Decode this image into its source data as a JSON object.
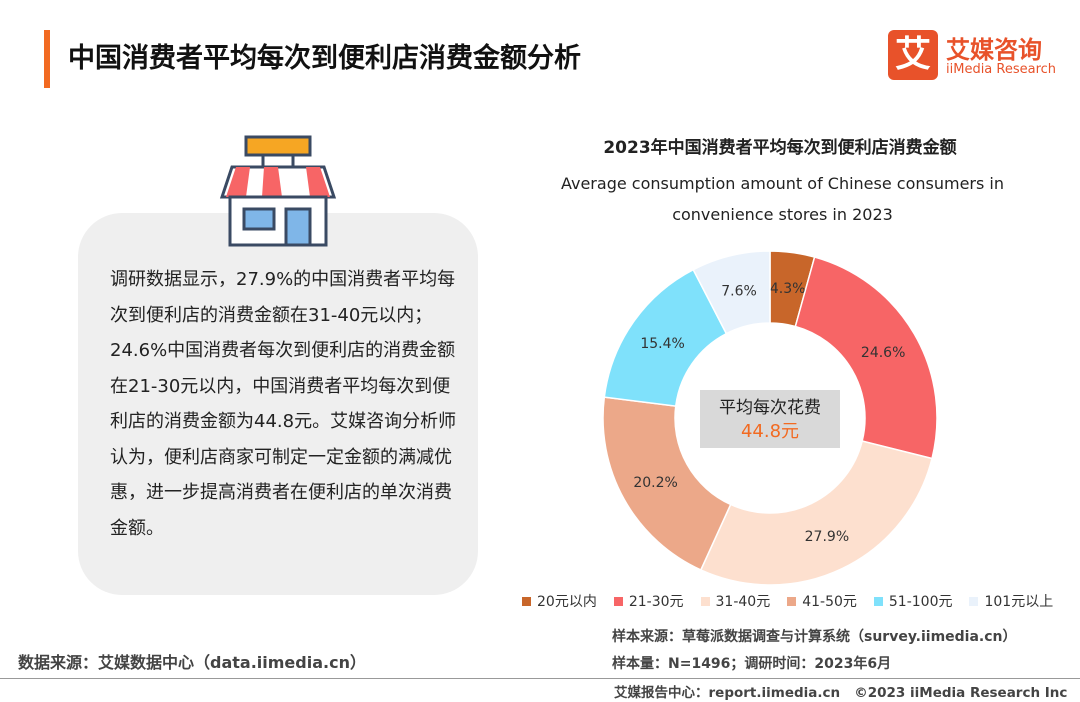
{
  "header": {
    "title": "中国消费者平均每次到便利店消费金额分析",
    "logo_mark": "艾",
    "logo_name": "艾媒咨询",
    "logo_en": "iiMedia Research"
  },
  "text_box": {
    "paragraph": "调研数据显示，27.9%的中国消费者平均每次到便利店的消费金额在31-40元以内；24.6%中国消费者每次到便利店的消费金额在21-30元以内，中国消费者平均每次到便利店的消费金额为44.8元。艾媒咨询分析师认为，便利店商家可制定一定金额的满减优惠，进一步提高消费者在便利店的单次消费金额。"
  },
  "chart_data": {
    "type": "donut",
    "title": "2023年中国消费者平均每次到便利店消费金额",
    "subtitle": "Average consumption amount of Chinese consumers in convenience stores in 2023",
    "categories": [
      "20元以内",
      "21-30元",
      "31-40元",
      "41-50元",
      "51-100元",
      "101元以上"
    ],
    "values": [
      4.3,
      24.6,
      27.9,
      20.2,
      15.4,
      7.6
    ],
    "value_labels": [
      "4.3%",
      "24.6%",
      "27.9%",
      "20.2%",
      "15.4%",
      "7.6%"
    ],
    "colors": [
      "#c8662a",
      "#f76566",
      "#fde0cf",
      "#eca889",
      "#7fe1fb",
      "#eaf2fb"
    ],
    "center_label": "平均每次花费",
    "center_value": "44.8元",
    "legend": "bottom"
  },
  "notes": {
    "sample_source": "样本来源：草莓派数据调查与计算系统（survey.iimedia.cn）",
    "sample_size": "样本量：N=1496；调研时间：2023年6月"
  },
  "footer": {
    "data_source": "数据来源：艾媒数据中心（data.iimedia.cn）",
    "report_center": "艾媒报告中心：report.iimedia.cn",
    "copyright": "©2023  iiMedia Research  Inc"
  }
}
